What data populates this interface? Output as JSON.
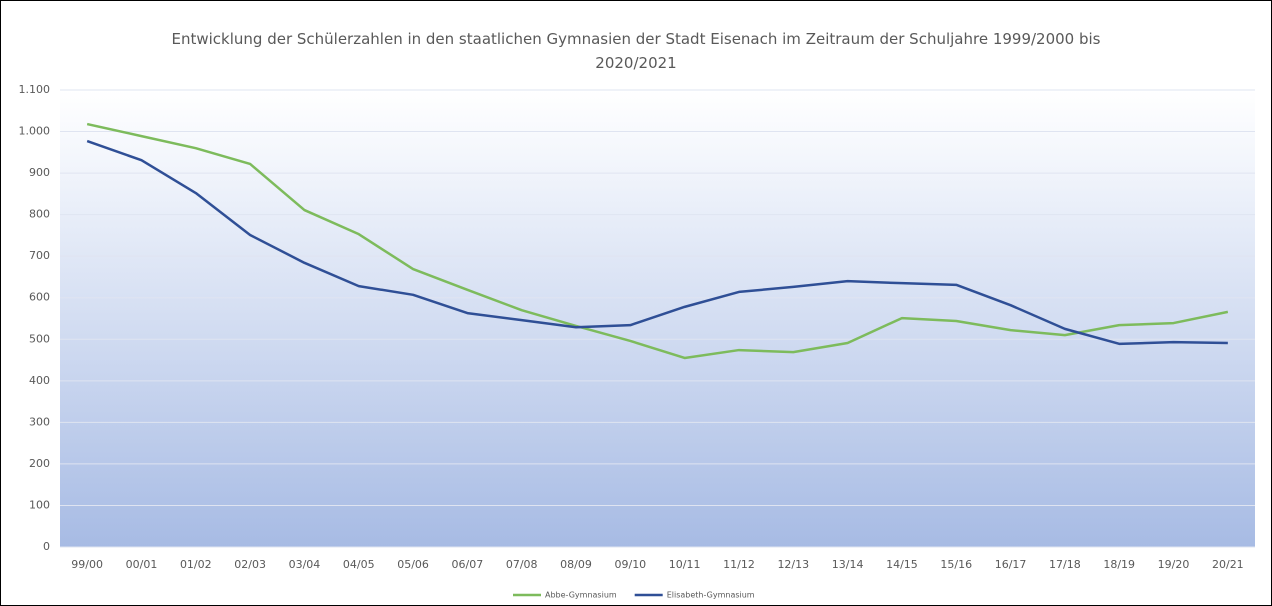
{
  "chart_data": {
    "type": "line",
    "title": "Entwicklung der Schülerzahlen in den staatlichen Gymnasien der Stadt Eisenach im Zeitraum der Schuljahre 1999/2000 bis 2020/2021",
    "categories": [
      "99/00",
      "00/01",
      "01/02",
      "02/03",
      "03/04",
      "04/05",
      "05/06",
      "06/07",
      "07/08",
      "08/09",
      "09/10",
      "10/11",
      "11/12",
      "12/13",
      "13/14",
      "14/15",
      "15/16",
      "16/17",
      "17/18",
      "18/19",
      "19/20",
      "20/21"
    ],
    "series": [
      {
        "name": "Abbe-Gymnasium",
        "color": "#7dbb5c",
        "values": [
          1018,
          989,
          960,
          922,
          811,
          753,
          669,
          619,
          570,
          532,
          496,
          455,
          474,
          469,
          491,
          551,
          544,
          522,
          510,
          534,
          539,
          566
        ]
      },
      {
        "name": "Elisabeth-Gymnasium",
        "color": "#2f4f96",
        "values": [
          977,
          931,
          852,
          751,
          684,
          628,
          607,
          563,
          546,
          529,
          534,
          578,
          614,
          626,
          640,
          635,
          631,
          582,
          525,
          489,
          493,
          491
        ]
      }
    ],
    "ylim": [
      0,
      1100
    ],
    "yticks": [
      0,
      100,
      200,
      300,
      400,
      500,
      600,
      700,
      800,
      900,
      {
        "value": 1000,
        "label": "1.000"
      },
      {
        "value": 1100,
        "label": "1.100"
      }
    ],
    "grid": true,
    "legend": "bottom"
  }
}
